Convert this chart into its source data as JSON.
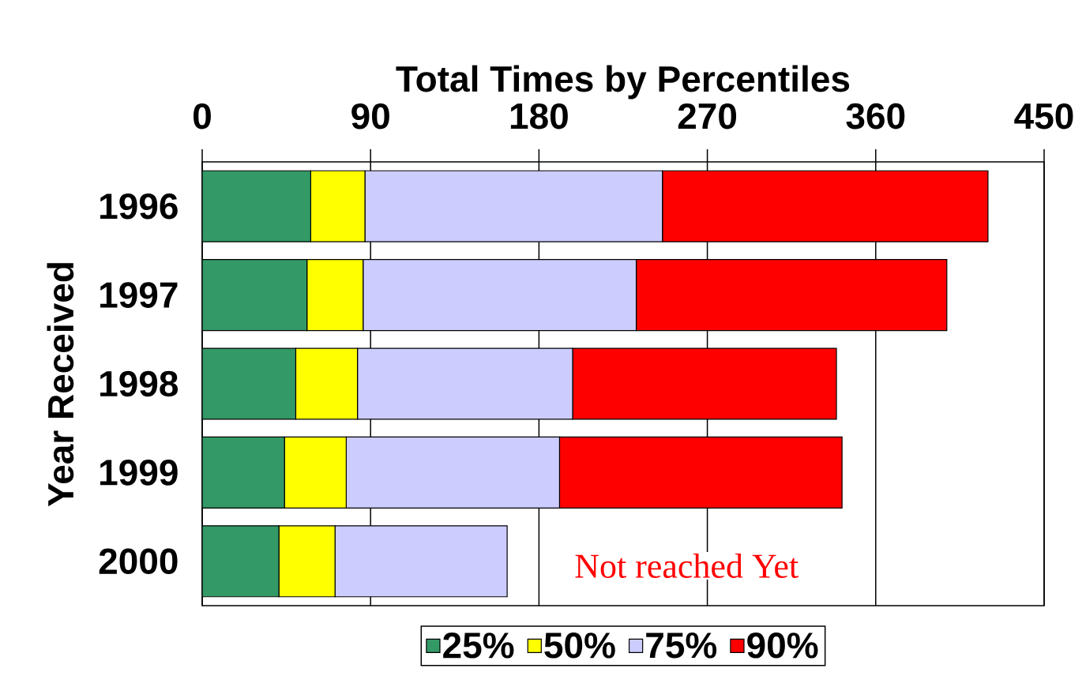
{
  "chart_data": {
    "type": "bar",
    "orientation": "horizontal",
    "stacked": true,
    "title": "Total Times by Percentiles",
    "ylabel": "Year Received",
    "categories": [
      "1996",
      "1997",
      "1998",
      "1999",
      "2000"
    ],
    "series": [
      {
        "name": "25%",
        "color": "#339966",
        "values": [
          58,
          56,
          50,
          44,
          41
        ]
      },
      {
        "name": "50%",
        "color": "#ffff00",
        "values": [
          29,
          30,
          33,
          33,
          30
        ]
      },
      {
        "name": "75%",
        "color": "#ccccff",
        "values": [
          159,
          146,
          115,
          114,
          92
        ]
      },
      {
        "name": "90%",
        "color": "#ff0000",
        "values": [
          174,
          166,
          141,
          151,
          null
        ]
      }
    ],
    "xlim": [
      0,
      450
    ],
    "xticks": [
      0,
      90,
      180,
      270,
      360,
      450
    ],
    "grid": "x",
    "legend": "bottom",
    "annotations": [
      "Not reached Yet"
    ]
  }
}
